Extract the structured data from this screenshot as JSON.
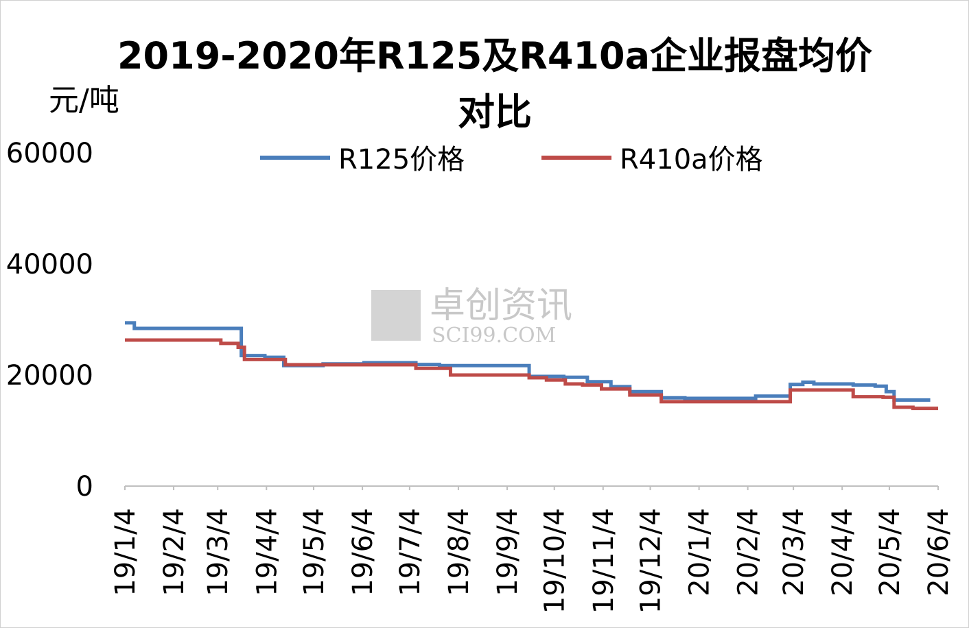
{
  "chart_data": {
    "type": "step-line",
    "title": "2019-2020年R125及R410a企业报盘均价对比",
    "y_label": "元/吨",
    "watermark": [
      "卓创资讯",
      "SCI99.COM"
    ],
    "xlim": [
      "19/1/4",
      "20/6/4"
    ],
    "xticks": [
      "19/1/4",
      "19/2/4",
      "19/3/4",
      "19/4/4",
      "19/5/4",
      "19/6/4",
      "19/7/4",
      "19/8/4",
      "19/9/4",
      "19/10/4",
      "19/11/4",
      "19/12/4",
      "20/1/4",
      "20/2/4",
      "20/3/4",
      "20/4/4",
      "20/5/4",
      "20/6/4"
    ],
    "ylim": [
      0,
      60000
    ],
    "yticks": [
      0,
      20000,
      40000,
      60000
    ],
    "grid": false,
    "series": [
      {
        "name": "R125价格",
        "color": "#4a7ebb",
        "x": [
          "19/1/4",
          "19/1/10",
          "19/3/19",
          "19/4/3",
          "19/4/15",
          "19/5/10",
          "19/6/5",
          "19/7/8",
          "19/7/23",
          "19/9/18",
          "19/10/10",
          "19/10/25",
          "19/11/9",
          "19/11/21",
          "19/12/11",
          "19/12/26",
          "20/2/9",
          "20/3/2",
          "20/3/10",
          "20/3/17",
          "20/4/11",
          "20/4/25",
          "20/5/2",
          "20/5/7",
          "20/5/30"
        ],
        "values": [
          29400,
          28400,
          23500,
          23200,
          21700,
          22000,
          22200,
          21900,
          21700,
          19750,
          19600,
          18800,
          17900,
          17000,
          15900,
          15800,
          16200,
          18300,
          18700,
          18400,
          18200,
          18000,
          17000,
          15500,
          15500
        ]
      },
      {
        "name": "R410a价格",
        "color": "#be4b48",
        "x": [
          "19/1/4",
          "19/3/6",
          "19/3/17",
          "19/3/21",
          "19/4/16",
          "19/7/8",
          "19/7/30",
          "19/9/18",
          "19/9/29",
          "19/10/11",
          "19/10/22",
          "19/11/3",
          "19/11/21",
          "19/12/11",
          "20/3/2",
          "20/4/11",
          "20/4/30",
          "20/5/7",
          "20/5/19",
          "20/6/4"
        ],
        "values": [
          26300,
          25700,
          25000,
          22800,
          21850,
          21200,
          20000,
          19500,
          19100,
          18400,
          18200,
          17500,
          16400,
          15200,
          17300,
          16100,
          16000,
          14200,
          14000,
          14000
        ]
      }
    ]
  }
}
